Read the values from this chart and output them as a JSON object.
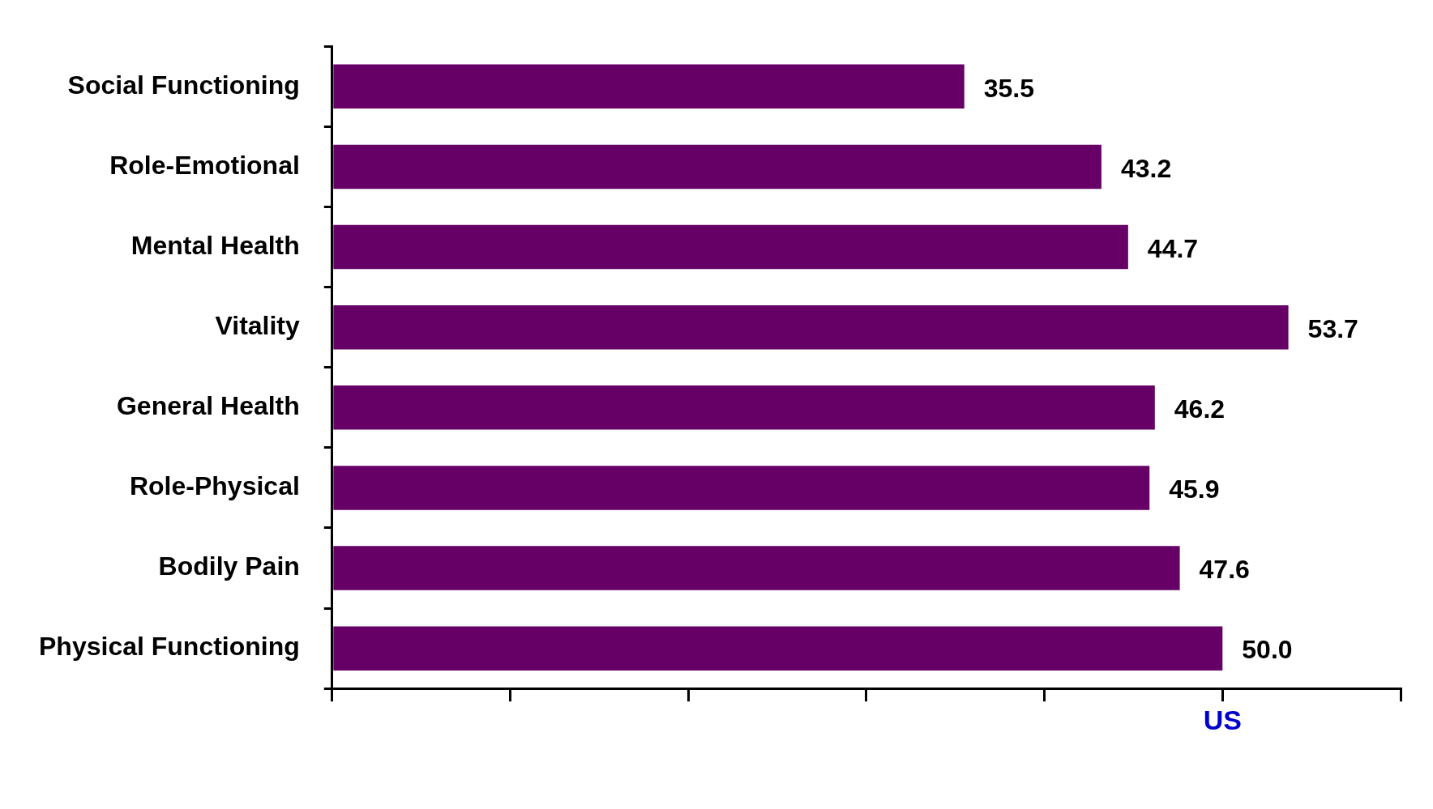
{
  "chart_data": {
    "type": "bar",
    "orientation": "horizontal",
    "categories": [
      "Social Functioning",
      "Role-Emotional",
      "Mental Health",
      "Vitality",
      "General Health",
      "Role-Physical",
      "Bodily Pain",
      "Physical Functioning"
    ],
    "values": [
      35.5,
      43.2,
      44.7,
      53.7,
      46.2,
      45.9,
      47.6,
      50.0
    ],
    "value_labels": [
      "35.5",
      "43.2",
      "44.7",
      "53.7",
      "46.2",
      "45.9",
      "47.6",
      "50.0"
    ],
    "color": "#660066",
    "annotations": [
      {
        "text": "US",
        "x": 50
      }
    ],
    "grid": false,
    "legend": false
  }
}
